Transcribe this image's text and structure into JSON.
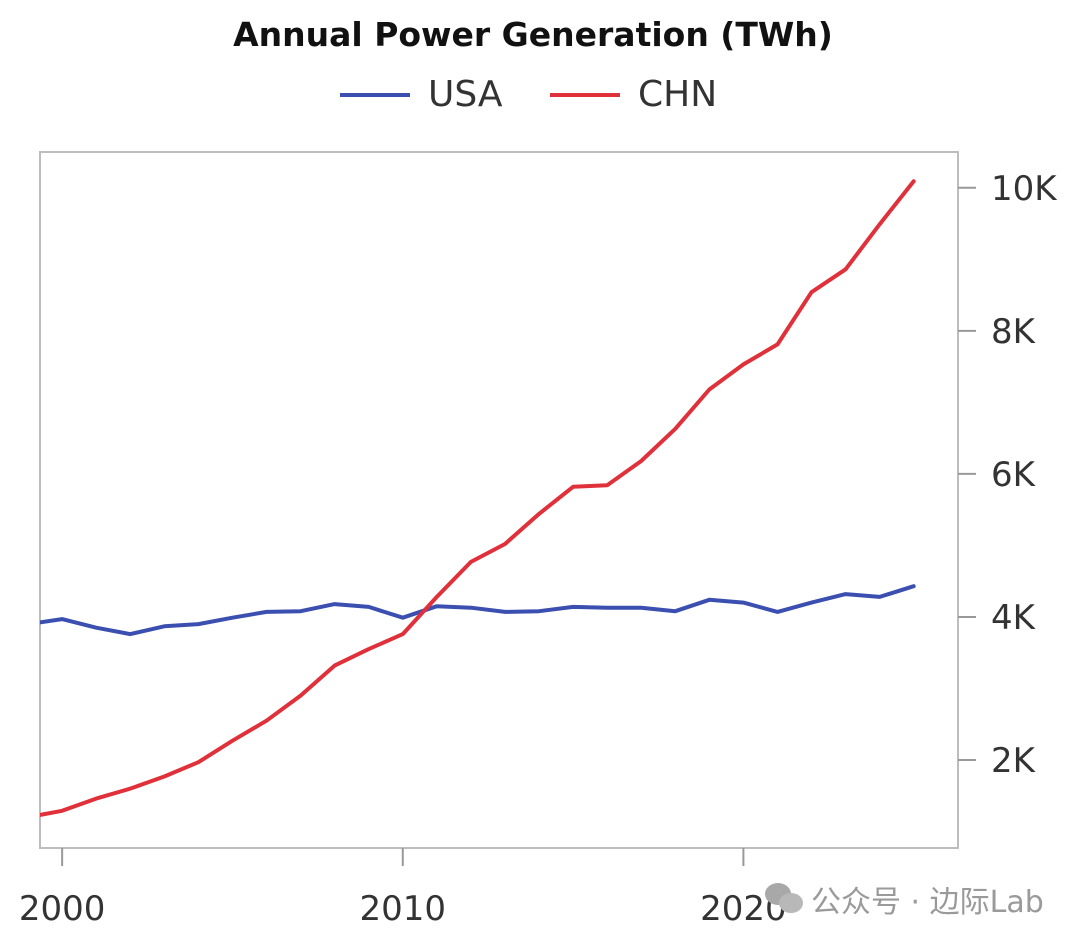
{
  "chart_data": {
    "type": "line",
    "title": "Annual Power Generation (TWh)",
    "x": [
      1999,
      2000,
      2001,
      2002,
      2003,
      2004,
      2005,
      2006,
      2007,
      2008,
      2009,
      2010,
      2011,
      2012,
      2013,
      2014,
      2015,
      2016,
      2017,
      2018,
      2019,
      2020,
      2021,
      2022,
      2023,
      2024,
      2025
    ],
    "series": [
      {
        "name": "USA",
        "color": "#3a4fb0",
        "values": [
          3900,
          3970,
          3850,
          3760,
          3870,
          3900,
          3990,
          4070,
          4080,
          4180,
          4140,
          3990,
          4150,
          4130,
          4070,
          4080,
          4140,
          4130,
          4130,
          4080,
          4240,
          4200,
          4070,
          4200,
          4320,
          4280,
          4430
        ]
      },
      {
        "name": "CHN",
        "color": "#e0303a",
        "values": [
          1200,
          1290,
          1460,
          1600,
          1770,
          1970,
          2270,
          2550,
          2900,
          3320,
          3550,
          3760,
          4280,
          4770,
          5020,
          5440,
          5820,
          5840,
          6180,
          6630,
          7180,
          7530,
          7810,
          8540,
          8860,
          9490,
          10090
        ]
      }
    ],
    "xlim": [
      1999.35,
      2026.3
    ],
    "ylim": [
      770,
      10500
    ],
    "xticks": [
      2000,
      2010,
      2020
    ],
    "xtick_labels": [
      "2000",
      "2010",
      "2020"
    ],
    "yticks": [
      2000,
      4000,
      6000,
      8000,
      10000
    ],
    "ytick_labels": [
      "2K",
      "4K",
      "6K",
      "8K",
      "10K"
    ],
    "y_axis_side": "right",
    "grid": false,
    "legend_position": "top-center"
  },
  "watermark": {
    "text": "公众号 · 边际Lab"
  }
}
